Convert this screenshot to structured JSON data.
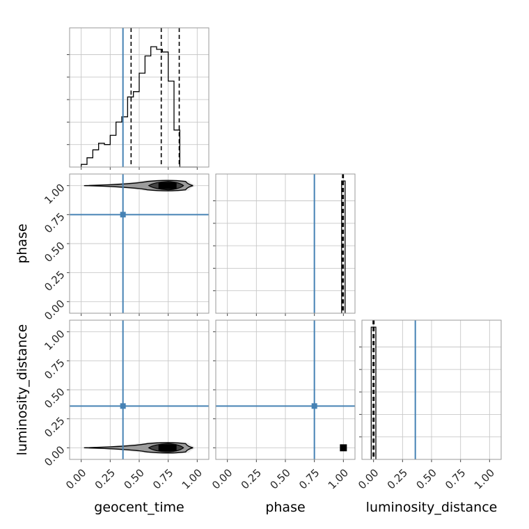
{
  "chart_data": {
    "type": "corner",
    "parameters": [
      "geocent_time",
      "phase",
      "luminosity_distance"
    ],
    "axis_labels": {
      "geocent_time": "geocent_time",
      "phase": "phase",
      "luminosity_distance": "luminosity_distance"
    },
    "ticks": [
      0.0,
      0.25,
      0.5,
      0.75,
      1.0
    ],
    "tick_labels": [
      "0.00",
      "0.25",
      "0.50",
      "0.75",
      "1.00"
    ],
    "axis_range": [
      -0.1,
      1.1
    ],
    "grid": true,
    "truth_color": "#4682b4",
    "truths": {
      "geocent_time": 0.36,
      "phase": 0.75,
      "luminosity_distance": 0.36
    },
    "quantiles": {
      "geocent_time": [
        0.43,
        0.69,
        0.845
      ],
      "phase": [
        0.993,
        0.997,
        1.0
      ],
      "luminosity_distance": [
        -0.004,
        0.0,
        0.004
      ]
    },
    "histograms": {
      "geocent_time": {
        "bin_edges": [
          0.0,
          0.05,
          0.1,
          0.15,
          0.2,
          0.25,
          0.3,
          0.35,
          0.4,
          0.45,
          0.5,
          0.55,
          0.6,
          0.65,
          0.7,
          0.75,
          0.8,
          0.85,
          0.9,
          0.95,
          1.0
        ],
        "counts": [
          0.02,
          0.07,
          0.13,
          0.18,
          0.17,
          0.24,
          0.34,
          0.38,
          0.53,
          0.57,
          0.71,
          0.84,
          0.91,
          0.89,
          0.87,
          0.65,
          0.28,
          0.0,
          0.0,
          0.0
        ]
      },
      "phase": {
        "bin_edges": [
          0.985,
          1.0,
          1.015
        ],
        "counts": [
          1.0,
          1.0
        ]
      },
      "luminosity_distance": {
        "bin_edges": [
          -0.02,
          0.0,
          0.02
        ],
        "counts": [
          1.0,
          1.0
        ]
      }
    },
    "scatter_2d": [
      {
        "x_param": "geocent_time",
        "y_param": "phase",
        "x_range": [
          0.0,
          1.0
        ],
        "y_value": 1.0,
        "peak_x": 0.75
      },
      {
        "x_param": "geocent_time",
        "y_param": "luminosity_distance",
        "x_range": [
          0.0,
          1.0
        ],
        "y_value": 0.0,
        "peak_x": 0.75
      },
      {
        "x_param": "phase",
        "y_param": "luminosity_distance",
        "x_value": 1.0,
        "y_value": 0.0
      }
    ]
  }
}
